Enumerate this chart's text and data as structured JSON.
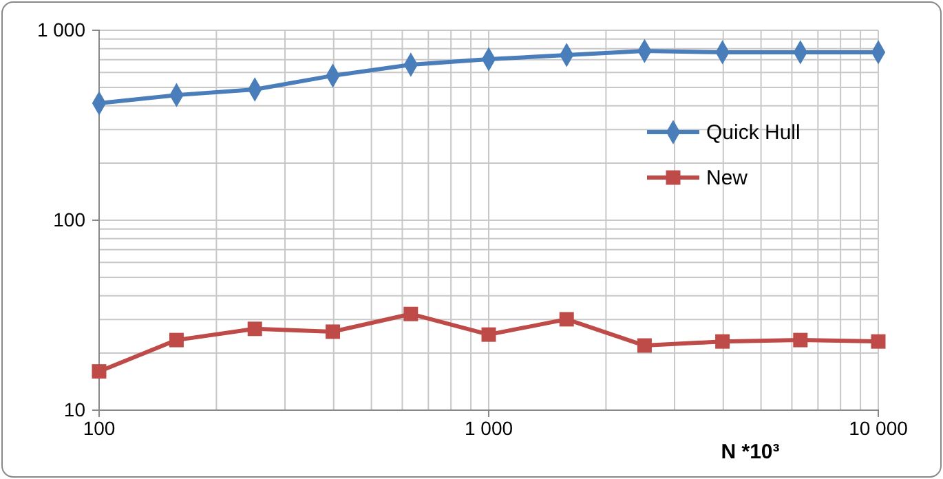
{
  "chart_data": {
    "type": "line",
    "xlabel": "N *10³",
    "log": "xy",
    "grid": true,
    "legend": "top right",
    "xlim": [
      100,
      10000
    ],
    "xticks": [
      100,
      {
        "value": 1000,
        "label": "1 000"
      },
      {
        "value": 10000,
        "label": "10 000"
      }
    ],
    "ylim": [
      10,
      1000
    ],
    "yticks": [
      10,
      100,
      {
        "value": 1000,
        "label": "1 000"
      }
    ],
    "x": [
      100,
      158,
      251,
      398,
      631,
      1000,
      1585,
      2512,
      3981,
      6310,
      10000
    ],
    "series": [
      {
        "name": "Quick Hull",
        "color": "#4a7ebb",
        "marker": "diamond",
        "values": [
          413,
          456,
          488,
          577,
          659,
          704,
          741,
          778,
          766,
          766,
          766
        ]
      },
      {
        "name": "New",
        "color": "#be4b48",
        "marker": "square",
        "values": [
          16.0,
          23.4,
          26.8,
          25.9,
          32.1,
          25.0,
          30.1,
          21.9,
          23.0,
          23.4,
          23.0
        ]
      }
    ]
  }
}
